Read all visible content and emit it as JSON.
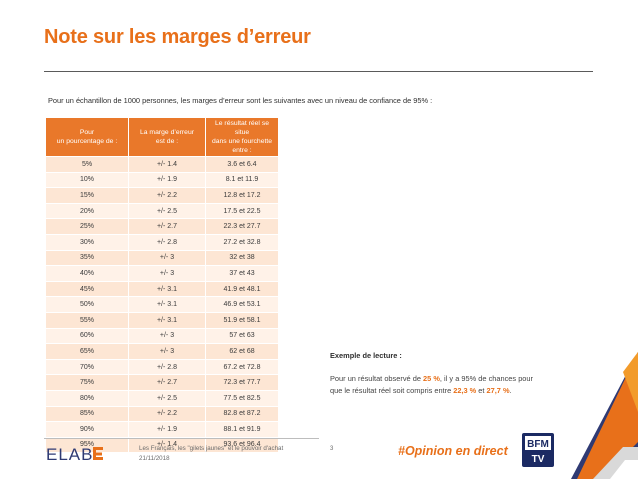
{
  "slide": {
    "title": "Note sur les marges d’erreur",
    "intro": "Pour un échantillon de 1000 personnes, les marges d’erreur sont les suivantes avec un niveau de confiance de 95% :"
  },
  "table": {
    "headers": [
      "Pour\nun pourcentage de :",
      "La marge d’erreur\nest de :",
      "Le résultat réel se situe\ndans une fourchette\nentre :"
    ],
    "rows": [
      [
        "5%",
        "+/- 1.4",
        "3.6 et 6.4"
      ],
      [
        "10%",
        "+/- 1.9",
        "8.1 et 11.9"
      ],
      [
        "15%",
        "+/- 2.2",
        "12.8 et 17.2"
      ],
      [
        "20%",
        "+/- 2.5",
        "17.5 et 22.5"
      ],
      [
        "25%",
        "+/- 2.7",
        "22.3 et 27.7"
      ],
      [
        "30%",
        "+/- 2.8",
        "27.2 et 32.8"
      ],
      [
        "35%",
        "+/- 3",
        "32  et  38"
      ],
      [
        "40%",
        "+/- 3",
        "37  et  43"
      ],
      [
        "45%",
        "+/- 3.1",
        "41.9 et 48.1"
      ],
      [
        "50%",
        "+/- 3.1",
        "46.9 et 53.1"
      ],
      [
        "55%",
        "+/- 3.1",
        "51.9 et 58.1"
      ],
      [
        "60%",
        "+/- 3",
        "57  et  63"
      ],
      [
        "65%",
        "+/- 3",
        "62  et  68"
      ],
      [
        "70%",
        "+/- 2.8",
        "67.2 et 72.8"
      ],
      [
        "75%",
        "+/- 2.7",
        "72.3 et 77.7"
      ],
      [
        "80%",
        "+/- 2.5",
        "77.5 et 82.5"
      ],
      [
        "85%",
        "+/- 2.2",
        "82.8 et 87.2"
      ],
      [
        "90%",
        "+/- 1.9",
        "88.1 et 91.9"
      ],
      [
        "95%",
        "+/- 1.4",
        "93.6 et 96.4"
      ]
    ]
  },
  "reading": {
    "title": "Exemple de lecture :",
    "text_1": "Pour un résultat observé de ",
    "value_observed": "25 %",
    "text_2": ", il y a 95% de chances pour que le résultat réel soit compris entre ",
    "value_low": "22,3 %",
    "text_3": " et ",
    "value_high": "27,7 %",
    "text_4": "."
  },
  "footer": {
    "logo": "ELABE",
    "study": "Les Français, les \"gilets jaunes\" et le pouvoir d'achat",
    "date": "21/11/2018",
    "page_number": "3",
    "hashtag": "#Opinion en direct",
    "partner_logo": "BFM TV"
  },
  "colors": {
    "accent": "#e8701a",
    "header_bg": "#e9782a",
    "row_odd": "#fde6d4",
    "row_even": "#fff2e8"
  }
}
